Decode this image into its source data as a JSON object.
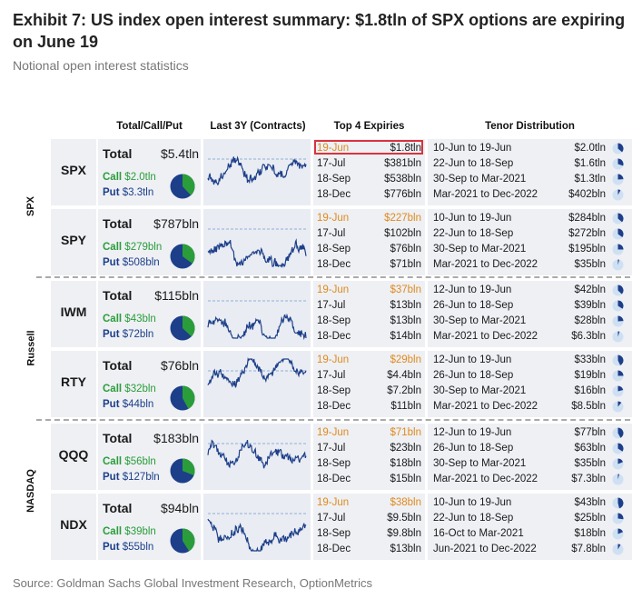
{
  "title": "Exhibit 7: US index open interest summary: $1.8tln of SPX options are expiring on June 19",
  "subtitle": "Notional open interest statistics",
  "source": "Source: Goldman Sachs Global Investment Research, OptionMetrics",
  "columns": {
    "total": "Total/Call/Put",
    "last3y": "Last 3Y (Contracts)",
    "expiries": "Top 4 Expiries",
    "tenor": "Tenor Distribution"
  },
  "labels": {
    "total": "Total",
    "call": "Call",
    "put": "Put"
  },
  "colors": {
    "call": "#2a9d3a",
    "put": "#1d3f8a",
    "first_expiry": "#e08a1e",
    "highlight_box": "#d9333f",
    "sparkline": "#1d3f8a"
  },
  "groups": [
    {
      "label": "SPX",
      "rows": [
        {
          "ticker": "SPX",
          "total": "$5.4tln",
          "call": "$2.0tln",
          "put": "$3.3tln",
          "call_share": 0.38,
          "expiries": [
            {
              "date": "19-Jun",
              "value": "$1.8tln"
            },
            {
              "date": "17-Jul",
              "value": "$381bln"
            },
            {
              "date": "18-Sep",
              "value": "$538bln"
            },
            {
              "date": "18-Dec",
              "value": "$776bln"
            }
          ],
          "tenors": [
            {
              "range": "10-Jun to 19-Jun",
              "value": "$2.0tln",
              "share": 0.36
            },
            {
              "range": "22-Jun to 18-Sep",
              "value": "$1.6tln",
              "share": 0.3
            },
            {
              "range": "30-Sep to Mar-2021",
              "value": "$1.3tln",
              "share": 0.24
            },
            {
              "range": "Mar-2021 to Dec-2022",
              "value": "$402bln",
              "share": 0.08
            }
          ]
        },
        {
          "ticker": "SPY",
          "total": "$787bln",
          "call": "$279bln",
          "put": "$508bln",
          "call_share": 0.35,
          "expiries": [
            {
              "date": "19-Jun",
              "value": "$227bln"
            },
            {
              "date": "17-Jul",
              "value": "$102bln"
            },
            {
              "date": "18-Sep",
              "value": "$76bln"
            },
            {
              "date": "18-Dec",
              "value": "$71bln"
            }
          ],
          "tenors": [
            {
              "range": "10-Jun to 19-Jun",
              "value": "$284bln",
              "share": 0.36
            },
            {
              "range": "22-Jun to 18-Sep",
              "value": "$272bln",
              "share": 0.35
            },
            {
              "range": "30-Sep to Mar-2021",
              "value": "$195bln",
              "share": 0.25
            },
            {
              "range": "Mar-2021 to Dec-2022",
              "value": "$35bln",
              "share": 0.04
            }
          ]
        }
      ]
    },
    {
      "label": "Russell",
      "rows": [
        {
          "ticker": "IWM",
          "total": "$115bln",
          "call": "$43bln",
          "put": "$72bln",
          "call_share": 0.37,
          "expiries": [
            {
              "date": "19-Jun",
              "value": "$37bln"
            },
            {
              "date": "17-Jul",
              "value": "$13bln"
            },
            {
              "date": "18-Sep",
              "value": "$13bln"
            },
            {
              "date": "18-Dec",
              "value": "$14bln"
            }
          ],
          "tenors": [
            {
              "range": "12-Jun to 19-Jun",
              "value": "$42bln",
              "share": 0.37
            },
            {
              "range": "26-Jun to 18-Sep",
              "value": "$39bln",
              "share": 0.34
            },
            {
              "range": "30-Sep to Mar-2021",
              "value": "$28bln",
              "share": 0.24
            },
            {
              "range": "Mar-2021 to Dec-2022",
              "value": "$6.3bln",
              "share": 0.05
            }
          ]
        },
        {
          "ticker": "RTY",
          "total": "$76bln",
          "call": "$32bln",
          "put": "$44bln",
          "call_share": 0.42,
          "expiries": [
            {
              "date": "19-Jun",
              "value": "$29bln"
            },
            {
              "date": "17-Jul",
              "value": "$4.4bln"
            },
            {
              "date": "18-Sep",
              "value": "$7.2bln"
            },
            {
              "date": "18-Dec",
              "value": "$11bln"
            }
          ],
          "tenors": [
            {
              "range": "12-Jun to 19-Jun",
              "value": "$33bln",
              "share": 0.43
            },
            {
              "range": "26-Jun to 18-Sep",
              "value": "$19bln",
              "share": 0.25
            },
            {
              "range": "30-Sep to Mar-2021",
              "value": "$16bln",
              "share": 0.21
            },
            {
              "range": "Mar-2021 to Dec-2022",
              "value": "$8.5bln",
              "share": 0.11
            }
          ]
        }
      ]
    },
    {
      "label": "NASDAQ",
      "rows": [
        {
          "ticker": "QQQ",
          "total": "$183bln",
          "call": "$56bln",
          "put": "$127bln",
          "call_share": 0.31,
          "expiries": [
            {
              "date": "19-Jun",
              "value": "$71bln"
            },
            {
              "date": "17-Jul",
              "value": "$23bln"
            },
            {
              "date": "18-Sep",
              "value": "$18bln"
            },
            {
              "date": "18-Dec",
              "value": "$15bln"
            }
          ],
          "tenors": [
            {
              "range": "12-Jun to 19-Jun",
              "value": "$77bln",
              "share": 0.42
            },
            {
              "range": "26-Jun to 18-Sep",
              "value": "$63bln",
              "share": 0.34
            },
            {
              "range": "30-Sep to Mar-2021",
              "value": "$35bln",
              "share": 0.19
            },
            {
              "range": "Mar-2021 to Dec-2022",
              "value": "$7.3bln",
              "share": 0.04
            }
          ]
        },
        {
          "ticker": "NDX",
          "total": "$94bln",
          "call": "$39bln",
          "put": "$55bln",
          "call_share": 0.41,
          "expiries": [
            {
              "date": "19-Jun",
              "value": "$38bln"
            },
            {
              "date": "17-Jul",
              "value": "$9.5bln"
            },
            {
              "date": "18-Sep",
              "value": "$9.8bln"
            },
            {
              "date": "18-Dec",
              "value": "$13bln"
            }
          ],
          "tenors": [
            {
              "range": "10-Jun to 19-Jun",
              "value": "$43bln",
              "share": 0.46
            },
            {
              "range": "22-Jun to 18-Sep",
              "value": "$25bln",
              "share": 0.27
            },
            {
              "range": "16-Oct to Mar-2021",
              "value": "$18bln",
              "share": 0.19
            },
            {
              "range": "Jun-2021 to Dec-2022",
              "value": "$7.8bln",
              "share": 0.08
            }
          ]
        }
      ]
    }
  ]
}
